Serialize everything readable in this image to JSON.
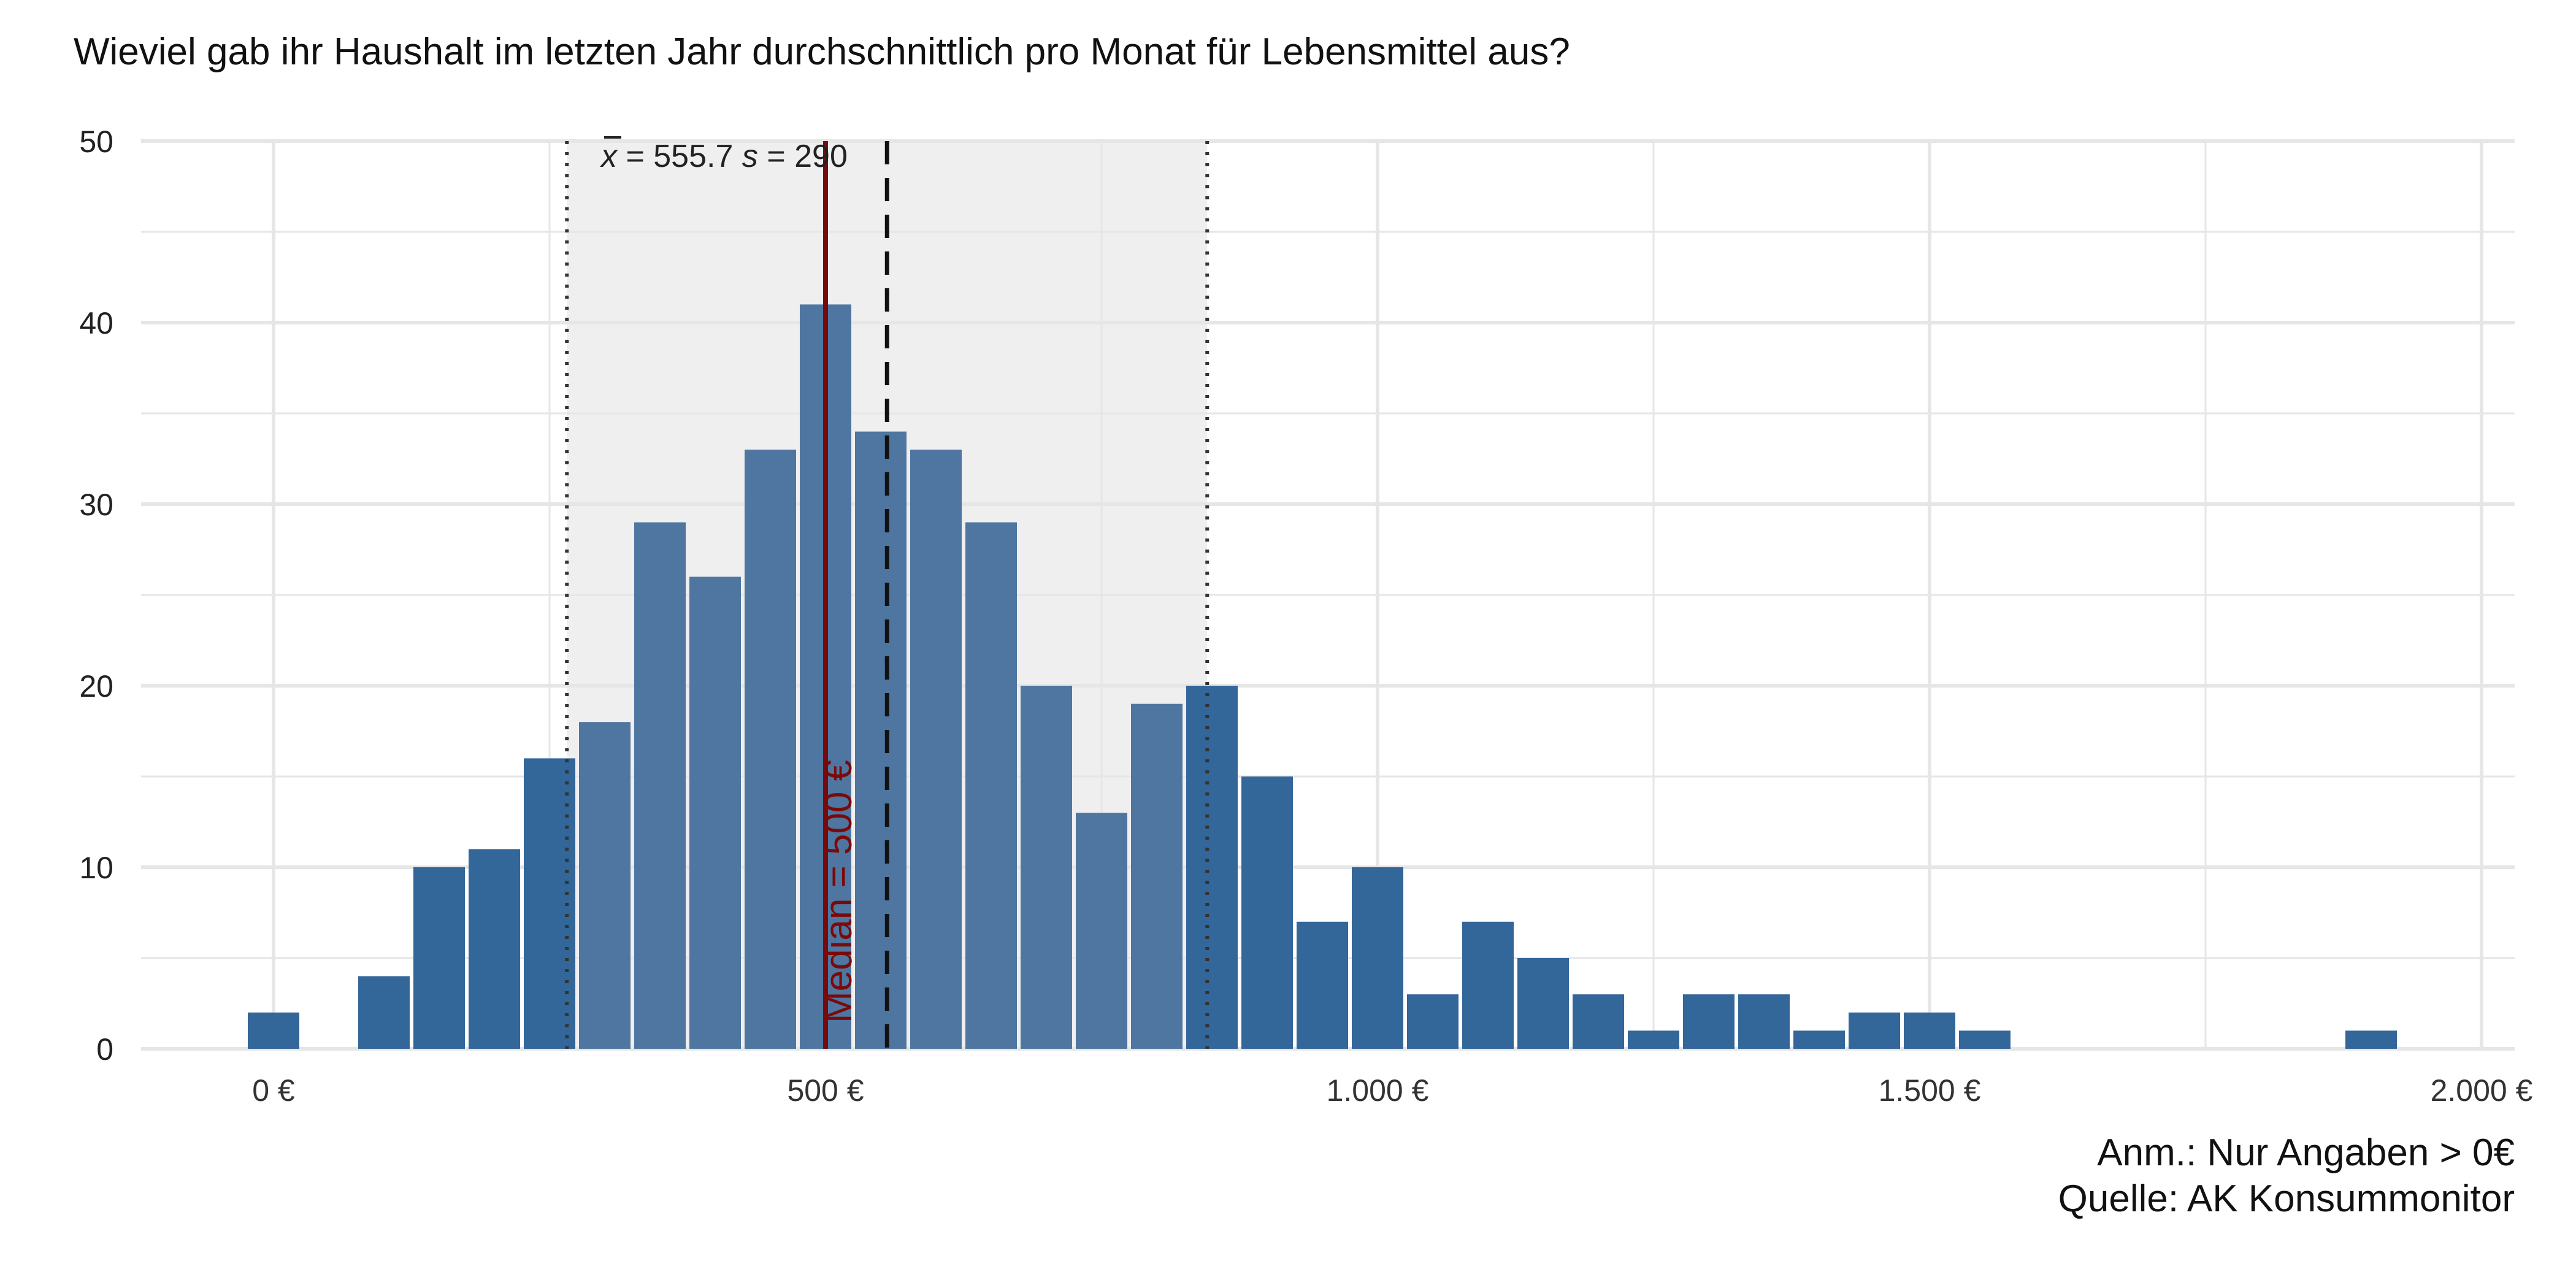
{
  "chart_data": {
    "type": "bar",
    "title": "Wieviel gab ihr Haushalt im letzten Jahr durchschnittlich pro Monat für Lebensmittel aus?",
    "xlabel": "",
    "ylabel": "",
    "xlim": [
      -120,
      2030
    ],
    "ylim": [
      0,
      50
    ],
    "bin_width": 50,
    "x_ticks": [
      {
        "value": 0,
        "label": "0 €"
      },
      {
        "value": 500,
        "label": "500 €"
      },
      {
        "value": 1000,
        "label": "1.000 €"
      },
      {
        "value": 1500,
        "label": "1.500 €"
      },
      {
        "value": 2000,
        "label": "2.000 €"
      }
    ],
    "y_ticks": [
      0,
      10,
      20,
      30,
      40,
      50
    ],
    "bins": [
      {
        "x": 0,
        "count": 2
      },
      {
        "x": 50,
        "count": 0
      },
      {
        "x": 100,
        "count": 4
      },
      {
        "x": 150,
        "count": 10
      },
      {
        "x": 200,
        "count": 11
      },
      {
        "x": 250,
        "count": 16
      },
      {
        "x": 300,
        "count": 18
      },
      {
        "x": 350,
        "count": 29
      },
      {
        "x": 400,
        "count": 26
      },
      {
        "x": 450,
        "count": 33
      },
      {
        "x": 500,
        "count": 41
      },
      {
        "x": 550,
        "count": 34
      },
      {
        "x": 600,
        "count": 33
      },
      {
        "x": 650,
        "count": 29
      },
      {
        "x": 700,
        "count": 20
      },
      {
        "x": 750,
        "count": 13
      },
      {
        "x": 800,
        "count": 19
      },
      {
        "x": 850,
        "count": 20
      },
      {
        "x": 900,
        "count": 15
      },
      {
        "x": 950,
        "count": 7
      },
      {
        "x": 1000,
        "count": 10
      },
      {
        "x": 1050,
        "count": 3
      },
      {
        "x": 1100,
        "count": 7
      },
      {
        "x": 1150,
        "count": 5
      },
      {
        "x": 1200,
        "count": 3
      },
      {
        "x": 1250,
        "count": 1
      },
      {
        "x": 1300,
        "count": 3
      },
      {
        "x": 1350,
        "count": 3
      },
      {
        "x": 1400,
        "count": 1
      },
      {
        "x": 1450,
        "count": 2
      },
      {
        "x": 1500,
        "count": 2
      },
      {
        "x": 1550,
        "count": 1
      },
      {
        "x": 1900,
        "count": 1
      }
    ],
    "mean": 555.7,
    "sd": 290,
    "median": 500,
    "stats_label": {
      "mean_symbol": "x",
      "mean_text": " = 555.7",
      "sd_symbol": "s",
      "sd_text": " = 290"
    },
    "median_label": "Median = 500 €",
    "caption": [
      "Anm.: Nur Angaben > 0€",
      "Quelle: AK Konsummonitor"
    ],
    "grid": true,
    "colors": {
      "bar_outside": "#336699",
      "bar_inside": "#4E76A0",
      "band": "#EFEFEF",
      "median": "#7A0A0A",
      "grid": "#E6E6E6"
    }
  }
}
